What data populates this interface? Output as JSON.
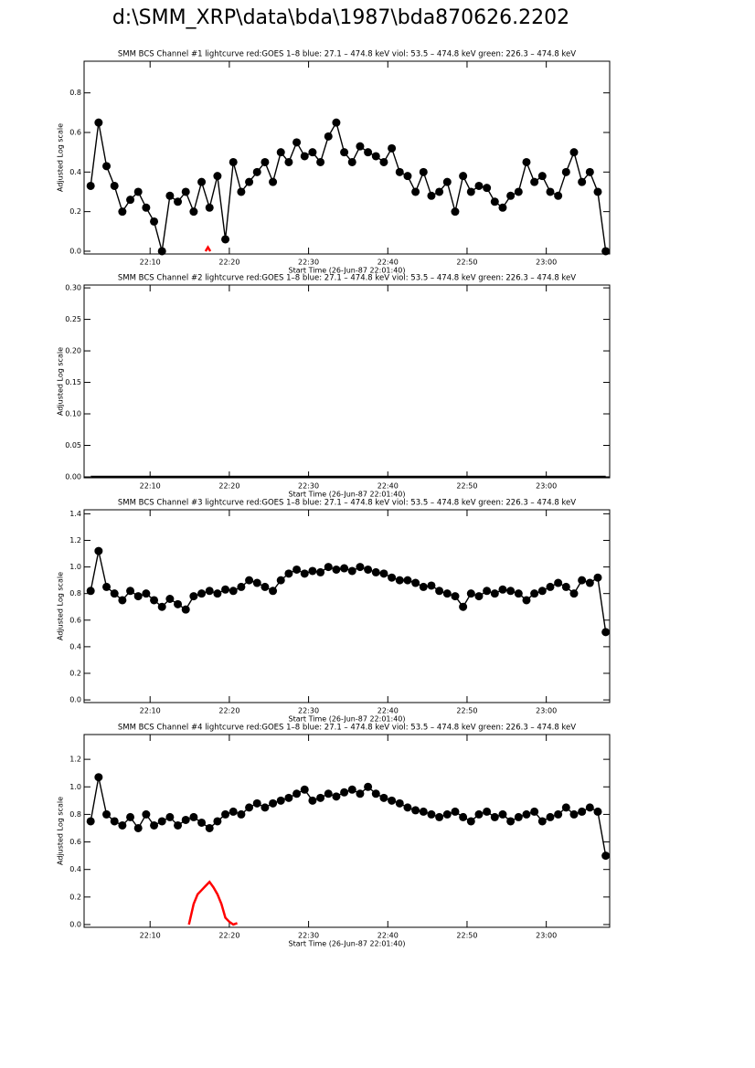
{
  "title": "d:\\SMM_XRP\\data\\bda\\1987\\bda870626.2202",
  "chart_data": [
    {
      "type": "line",
      "title": "SMM BCS Channel #1 lightcurve  red:GOES 1–8  blue: 27.1 – 474.8 keV  viol: 53.5 – 474.8 keV  green: 226.3 – 474.8 keV",
      "xlabel": "Start Time (26-Jun-87 22:01:40)",
      "ylabel": "Adjusted Log scale",
      "xlim": [
        1.67,
        68
      ],
      "ylim": [
        -0.014,
        0.96
      ],
      "xticks": [
        {
          "value": 10,
          "label": "22:10"
        },
        {
          "value": 20,
          "label": "22:20"
        },
        {
          "value": 30,
          "label": "22:30"
        },
        {
          "value": 40,
          "label": "22:40"
        },
        {
          "value": 50,
          "label": "22:50"
        },
        {
          "value": 60,
          "label": "23:00"
        }
      ],
      "yticks": [
        {
          "value": 0,
          "label": "0.0"
        },
        0.2,
        0.4,
        0.6,
        0.8
      ],
      "x": [
        2.5,
        3.5,
        4.5,
        5.5,
        6.5,
        7.5,
        8.5,
        9.5,
        10.5,
        11.5,
        12.5,
        13.5,
        14.5,
        15.5,
        16.5,
        17.5,
        18.5,
        19.5,
        20.5,
        21.5,
        22.5,
        23.5,
        24.5,
        25.5,
        26.5,
        27.5,
        28.5,
        29.5,
        30.5,
        31.5,
        32.5,
        33.5,
        34.5,
        35.5,
        36.5,
        37.5,
        38.5,
        39.5,
        40.5,
        41.5,
        42.5,
        43.5,
        44.5,
        45.5,
        46.5,
        47.5,
        48.5,
        49.5,
        50.5,
        51.5,
        52.5,
        53.5,
        54.5,
        55.5,
        56.5,
        57.5,
        58.5,
        59.5,
        60.5,
        61.5,
        62.5,
        63.5,
        64.5,
        65.5,
        66.5,
        67.5
      ],
      "series": [
        {
          "color": "#000000",
          "markers": true,
          "values": [
            0.33,
            0.65,
            0.43,
            0.33,
            0.2,
            0.26,
            0.3,
            0.22,
            0.15,
            0.0,
            0.28,
            0.25,
            0.3,
            0.2,
            0.35,
            0.22,
            0.38,
            0.06,
            0.45,
            0.3,
            0.35,
            0.4,
            0.45,
            0.35,
            0.5,
            0.45,
            0.55,
            0.48,
            0.5,
            0.45,
            0.58,
            0.65,
            0.5,
            0.45,
            0.53,
            0.5,
            0.48,
            0.45,
            0.52,
            0.4,
            0.38,
            0.3,
            0.4,
            0.28,
            0.3,
            0.35,
            0.2,
            0.38,
            0.3,
            0.33,
            0.32,
            0.25,
            0.22,
            0.28,
            0.3,
            0.45,
            0.35,
            0.38,
            0.3,
            0.28,
            0.4,
            0.5,
            0.35,
            0.4,
            0.3,
            0.0
          ]
        },
        {
          "color": "#ff0000",
          "markers": false,
          "x": [
            17,
            17.3,
            17.6
          ],
          "values": [
            0,
            0.02,
            0
          ]
        }
      ]
    },
    {
      "type": "line",
      "title": "SMM BCS Channel #2 lightcurve  red:GOES 1–8  blue: 27.1 – 474.8 keV  viol: 53.5 – 474.8 keV  green: 226.3 – 474.8 keV",
      "xlabel": "Start Time (26-Jun-87 22:01:40)",
      "ylabel": "Adjusted Log scale",
      "xlim": [
        1.67,
        68
      ],
      "ylim": [
        -0.0015,
        0.3045
      ],
      "xticks": [
        {
          "value": 10,
          "label": "22:10"
        },
        {
          "value": 20,
          "label": "22:20"
        },
        {
          "value": 30,
          "label": "22:30"
        },
        {
          "value": 40,
          "label": "22:40"
        },
        {
          "value": 50,
          "label": "22:50"
        },
        {
          "value": 60,
          "label": "23:00"
        }
      ],
      "yticks": [
        {
          "value": 0,
          "label": "0.00"
        },
        0.05,
        {
          "value": 0.1,
          "label": "0.10"
        },
        0.15,
        {
          "value": 0.2,
          "label": "0.20"
        },
        0.25,
        {
          "value": 0.3,
          "label": "0.30"
        }
      ],
      "x": [
        2.5,
        3.5,
        4.5,
        5.5,
        6.5,
        7.5,
        8.5,
        9.5,
        10.5,
        11.5,
        12.5,
        13.5,
        14.5,
        15.5,
        16.5,
        17.5,
        18.5,
        19.5,
        20.5,
        21.5,
        22.5,
        23.5,
        24.5,
        25.5,
        26.5,
        27.5,
        28.5,
        29.5,
        30.5,
        31.5,
        32.5,
        33.5,
        34.5,
        35.5,
        36.5,
        37.5,
        38.5,
        39.5,
        40.5,
        41.5,
        42.5,
        43.5,
        44.5,
        45.5,
        46.5,
        47.5,
        48.5,
        49.5,
        50.5,
        51.5,
        52.5,
        53.5,
        54.5,
        55.5,
        56.5,
        57.5,
        58.5,
        59.5,
        60.5,
        61.5,
        62.5,
        63.5,
        64.5,
        65.5,
        66.5,
        67.5
      ],
      "series": [
        {
          "color": "#000000",
          "markers": false,
          "values": [
            0,
            0,
            0,
            0,
            0,
            0,
            0,
            0,
            0,
            0,
            0,
            0,
            0,
            0,
            0,
            0,
            0,
            0,
            0,
            0,
            0,
            0,
            0,
            0,
            0,
            0,
            0,
            0,
            0,
            0,
            0,
            0,
            0,
            0,
            0,
            0,
            0,
            0,
            0,
            0,
            0,
            0,
            0,
            0,
            0,
            0,
            0,
            0,
            0,
            0,
            0,
            0,
            0,
            0,
            0,
            0,
            0,
            0,
            0,
            0,
            0,
            0,
            0,
            0,
            0,
            0
          ]
        }
      ]
    },
    {
      "type": "line",
      "title": "SMM BCS Channel #3 lightcurve  red:GOES 1–8  blue: 27.1 – 474.8 keV  viol: 53.5 – 474.8 keV  green: 226.3 – 474.8 keV",
      "xlabel": "Start Time (26-Jun-87 22:01:40)",
      "ylabel": "Adjusted Log scale",
      "xlim": [
        1.67,
        68
      ],
      "ylim": [
        -0.02,
        1.43
      ],
      "xticks": [
        {
          "value": 10,
          "label": "22:10"
        },
        {
          "value": 20,
          "label": "22:20"
        },
        {
          "value": 30,
          "label": "22:30"
        },
        {
          "value": 40,
          "label": "22:40"
        },
        {
          "value": 50,
          "label": "22:50"
        },
        {
          "value": 60,
          "label": "23:00"
        }
      ],
      "yticks": [
        {
          "value": 0,
          "label": "0.0"
        },
        0.2,
        0.4,
        0.6,
        0.8,
        {
          "value": 1,
          "label": "1.0"
        },
        1.2,
        1.4
      ],
      "x": [
        2.5,
        3.5,
        4.5,
        5.5,
        6.5,
        7.5,
        8.5,
        9.5,
        10.5,
        11.5,
        12.5,
        13.5,
        14.5,
        15.5,
        16.5,
        17.5,
        18.5,
        19.5,
        20.5,
        21.5,
        22.5,
        23.5,
        24.5,
        25.5,
        26.5,
        27.5,
        28.5,
        29.5,
        30.5,
        31.5,
        32.5,
        33.5,
        34.5,
        35.5,
        36.5,
        37.5,
        38.5,
        39.5,
        40.5,
        41.5,
        42.5,
        43.5,
        44.5,
        45.5,
        46.5,
        47.5,
        48.5,
        49.5,
        50.5,
        51.5,
        52.5,
        53.5,
        54.5,
        55.5,
        56.5,
        57.5,
        58.5,
        59.5,
        60.5,
        61.5,
        62.5,
        63.5,
        64.5,
        65.5,
        66.5,
        67.5
      ],
      "series": [
        {
          "color": "#000000",
          "markers": true,
          "values": [
            0.82,
            1.12,
            0.85,
            0.8,
            0.75,
            0.82,
            0.78,
            0.8,
            0.75,
            0.7,
            0.76,
            0.72,
            0.68,
            0.78,
            0.8,
            0.82,
            0.8,
            0.83,
            0.82,
            0.85,
            0.9,
            0.88,
            0.85,
            0.82,
            0.9,
            0.95,
            0.98,
            0.95,
            0.97,
            0.96,
            1.0,
            0.98,
            0.99,
            0.97,
            1.0,
            0.98,
            0.96,
            0.95,
            0.92,
            0.9,
            0.9,
            0.88,
            0.85,
            0.86,
            0.82,
            0.8,
            0.78,
            0.7,
            0.8,
            0.78,
            0.82,
            0.8,
            0.83,
            0.82,
            0.8,
            0.75,
            0.8,
            0.82,
            0.85,
            0.88,
            0.85,
            0.8,
            0.9,
            0.88,
            0.92,
            0.51
          ]
        }
      ]
    },
    {
      "type": "line",
      "title": "SMM BCS Channel #4 lightcurve  red:GOES 1–8  blue: 27.1 – 474.8 keV  viol: 53.5 – 474.8 keV  green: 226.3 – 474.8 keV",
      "xlabel": "Start Time (26-Jun-87 22:01:40)",
      "ylabel": "Adjusted Log scale",
      "xlim": [
        1.67,
        68
      ],
      "ylim": [
        -0.02,
        1.38
      ],
      "xticks": [
        {
          "value": 10,
          "label": "22:10"
        },
        {
          "value": 20,
          "label": "22:20"
        },
        {
          "value": 30,
          "label": "22:30"
        },
        {
          "value": 40,
          "label": "22:40"
        },
        {
          "value": 50,
          "label": "22:50"
        },
        {
          "value": 60,
          "label": "23:00"
        }
      ],
      "yticks": [
        {
          "value": 0,
          "label": "0.0"
        },
        0.2,
        0.4,
        0.6,
        0.8,
        {
          "value": 1,
          "label": "1.0"
        },
        1.2
      ],
      "x": [
        2.5,
        3.5,
        4.5,
        5.5,
        6.5,
        7.5,
        8.5,
        9.5,
        10.5,
        11.5,
        12.5,
        13.5,
        14.5,
        15.5,
        16.5,
        17.5,
        18.5,
        19.5,
        20.5,
        21.5,
        22.5,
        23.5,
        24.5,
        25.5,
        26.5,
        27.5,
        28.5,
        29.5,
        30.5,
        31.5,
        32.5,
        33.5,
        34.5,
        35.5,
        36.5,
        37.5,
        38.5,
        39.5,
        40.5,
        41.5,
        42.5,
        43.5,
        44.5,
        45.5,
        46.5,
        47.5,
        48.5,
        49.5,
        50.5,
        51.5,
        52.5,
        53.5,
        54.5,
        55.5,
        56.5,
        57.5,
        58.5,
        59.5,
        60.5,
        61.5,
        62.5,
        63.5,
        64.5,
        65.5,
        66.5,
        67.5
      ],
      "series": [
        {
          "color": "#000000",
          "markers": true,
          "values": [
            0.75,
            1.07,
            0.8,
            0.75,
            0.72,
            0.78,
            0.7,
            0.8,
            0.72,
            0.75,
            0.78,
            0.72,
            0.76,
            0.78,
            0.74,
            0.7,
            0.75,
            0.8,
            0.82,
            0.8,
            0.85,
            0.88,
            0.85,
            0.88,
            0.9,
            0.92,
            0.95,
            0.98,
            0.9,
            0.92,
            0.95,
            0.93,
            0.96,
            0.98,
            0.95,
            1.0,
            0.95,
            0.92,
            0.9,
            0.88,
            0.85,
            0.83,
            0.82,
            0.8,
            0.78,
            0.8,
            0.82,
            0.78,
            0.75,
            0.8,
            0.82,
            0.78,
            0.8,
            0.75,
            0.78,
            0.8,
            0.82,
            0.75,
            0.78,
            0.8,
            0.85,
            0.8,
            0.82,
            0.85,
            0.82,
            0.5
          ]
        },
        {
          "color": "#ff0000",
          "markers": false,
          "x": [
            14.9,
            15.5,
            16,
            16.5,
            17,
            17.5,
            18,
            18.5,
            19,
            19.5,
            20,
            20.5,
            21
          ],
          "values": [
            0,
            0.15,
            0.22,
            0.25,
            0.28,
            0.31,
            0.27,
            0.22,
            0.15,
            0.05,
            0.02,
            0,
            0.01
          ]
        }
      ]
    }
  ]
}
